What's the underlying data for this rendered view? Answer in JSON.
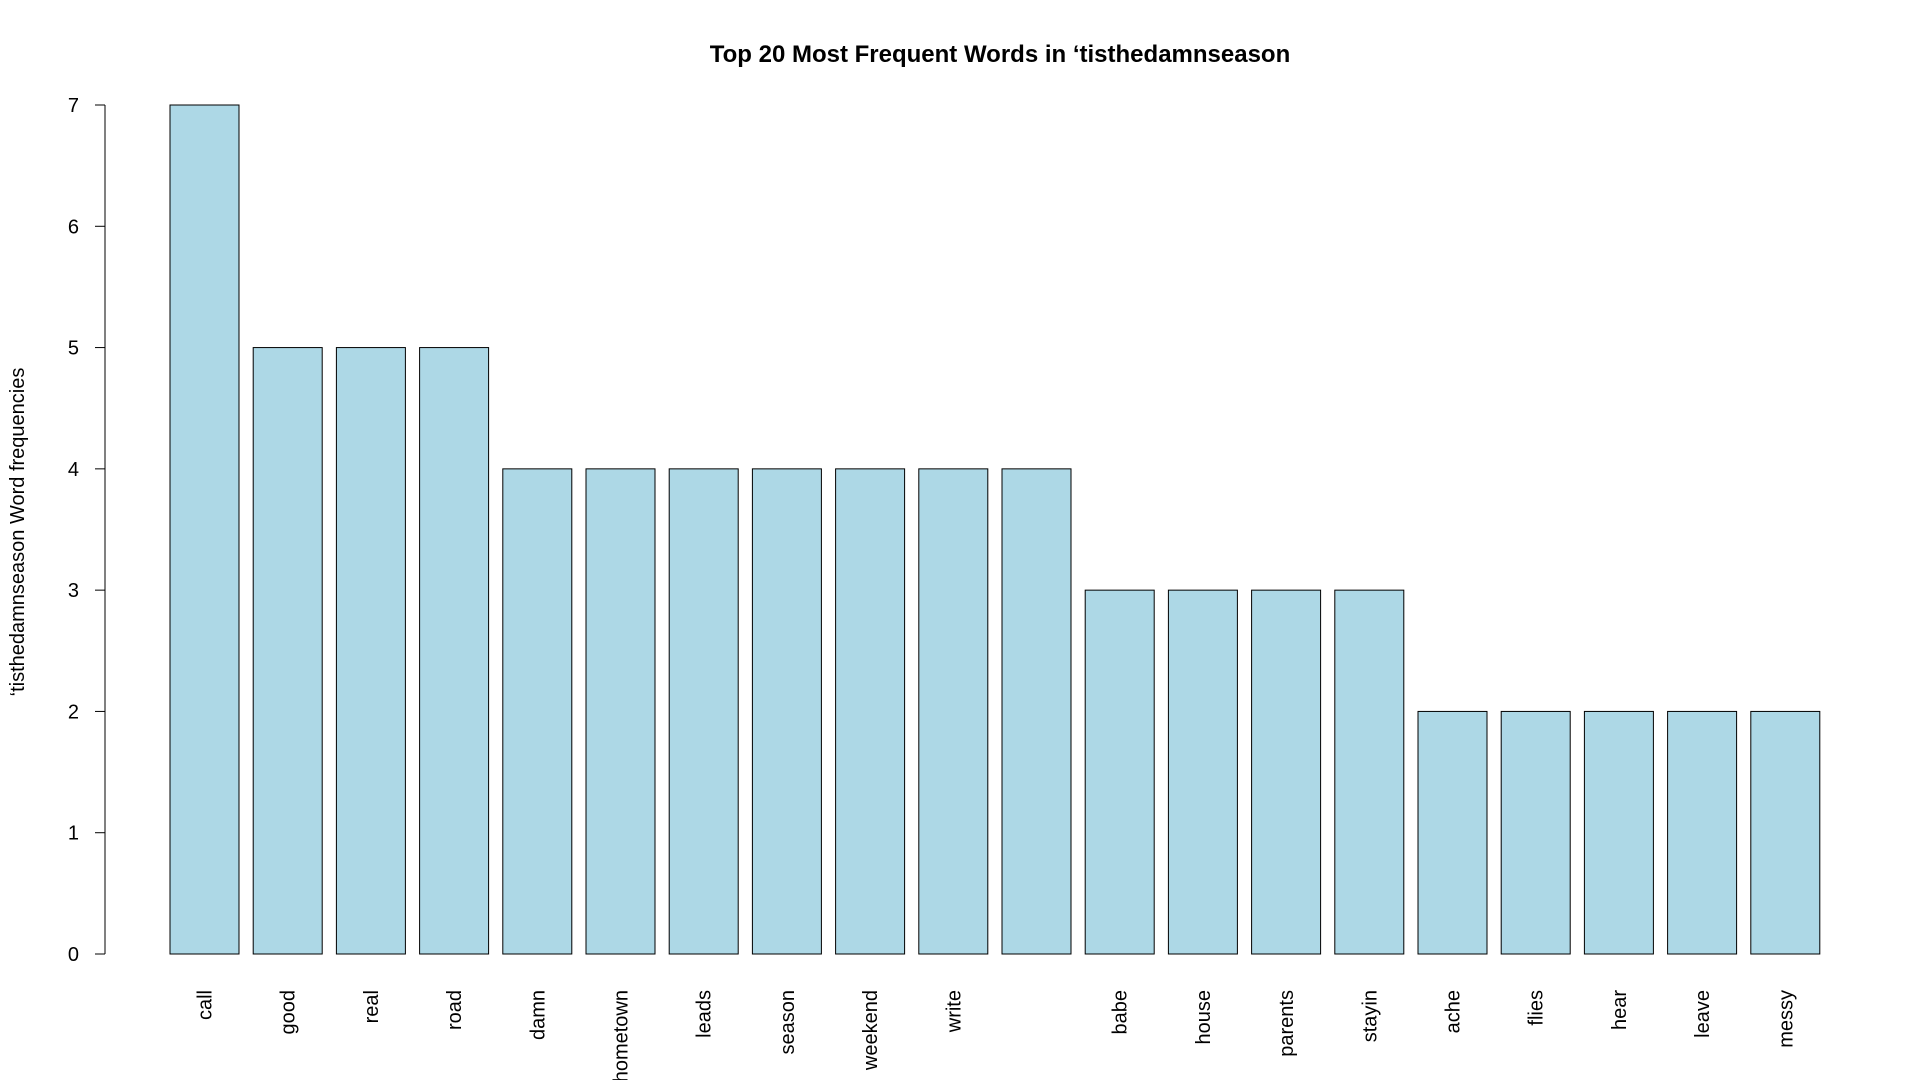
{
  "chart_data": {
    "type": "bar",
    "title": "Top 20 Most Frequent Words in ‘tisthedamnseason",
    "xlabel": "",
    "ylabel": "‘tisthedamnseason Word frequencies",
    "categories": [
      "call",
      "good",
      "real",
      "road",
      "damn",
      "hometown",
      "leads",
      "season",
      "weekend",
      "write",
      "",
      "babe",
      "house",
      "parents",
      "stayin",
      "ache",
      "flies",
      "hear",
      "leave",
      "messy"
    ],
    "values": [
      7,
      5,
      5,
      5,
      4,
      4,
      4,
      4,
      4,
      4,
      4,
      3,
      3,
      3,
      3,
      2,
      2,
      2,
      2,
      2
    ],
    "yticks": [
      "0",
      "1",
      "2",
      "3",
      "4",
      "5",
      "6",
      "7"
    ],
    "ylim": [
      0,
      7
    ],
    "bar_color": "#add8e6",
    "grid": false,
    "legend": "none"
  }
}
